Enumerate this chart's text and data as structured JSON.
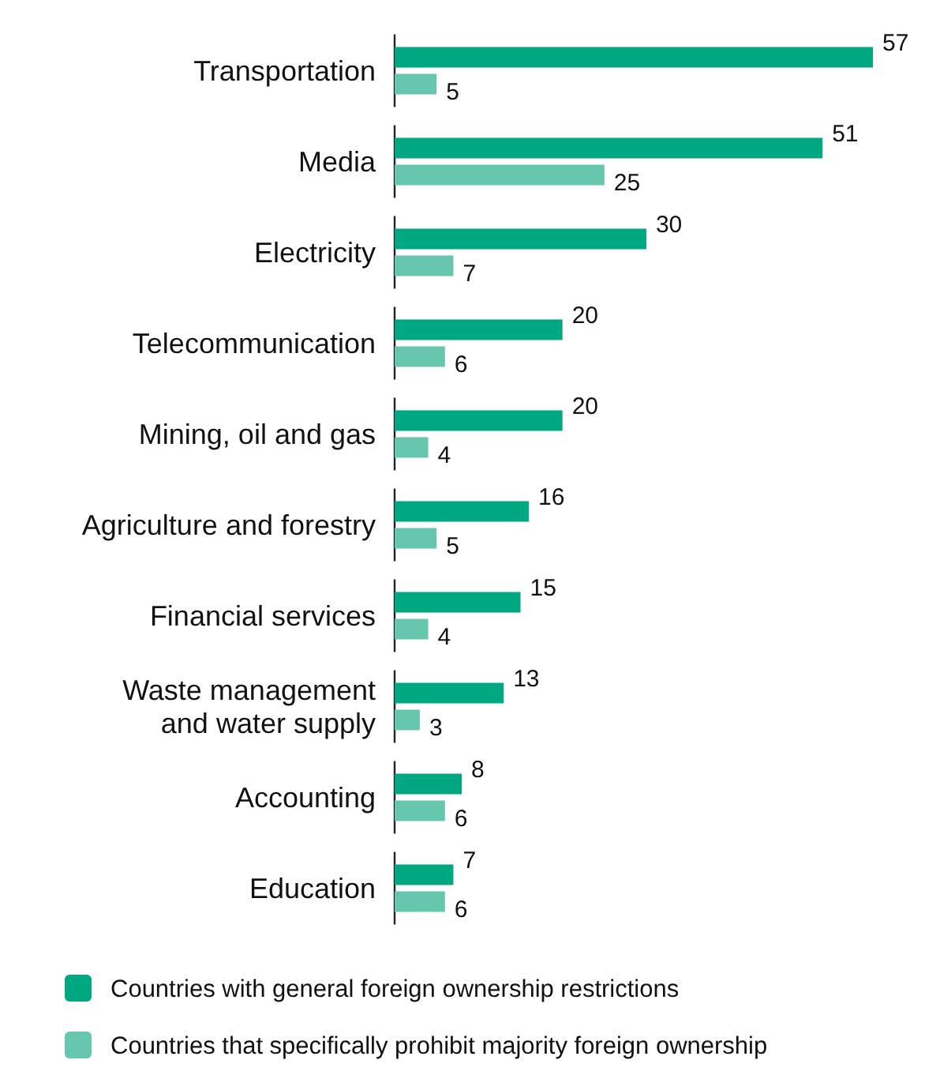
{
  "chart_data": {
    "type": "bar",
    "orientation": "horizontal",
    "data_labels": true,
    "legend": "bottom",
    "categories": [
      "Transportation",
      "Media",
      "Electricity",
      "Telecommunication",
      "Mining, oil and gas",
      "Agriculture and forestry",
      "Financial services",
      "Waste management and water supply",
      "Accounting",
      "Education"
    ],
    "series": [
      {
        "name": "Countries with general foreign ownership restrictions",
        "color": "#00a882",
        "values": [
          57,
          51,
          30,
          20,
          20,
          16,
          15,
          13,
          8,
          7
        ]
      },
      {
        "name": "Countries that specifically prohibit majority foreign ownership",
        "color": "#66c6ae",
        "values": [
          5,
          25,
          7,
          6,
          4,
          5,
          4,
          3,
          6,
          6
        ]
      }
    ]
  }
}
